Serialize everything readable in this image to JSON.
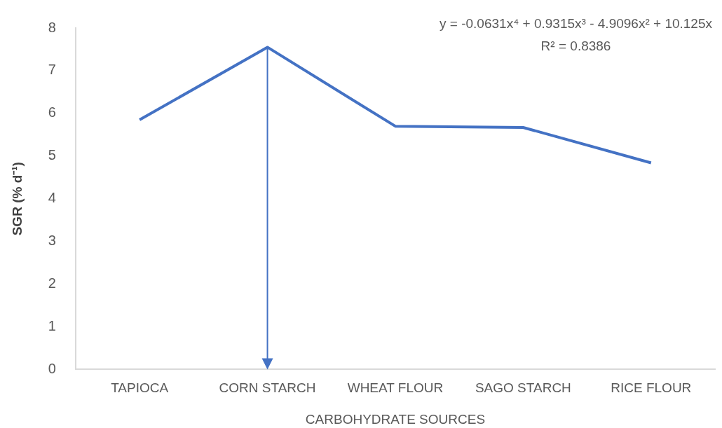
{
  "chart_data": {
    "type": "line",
    "categories": [
      "TAPIOCA",
      "CORN STARCH",
      "WHEAT FLOUR",
      "SAGO STARCH",
      "RICE FLOUR"
    ],
    "series": [
      {
        "color": "#4472c4",
        "values": [
          5.85,
          7.55,
          5.7,
          5.67,
          4.84
        ]
      }
    ],
    "xlabel": "CARBOHYDRATE SOURCES",
    "ylabel": "SGR (% d⁻¹)",
    "ylim": [
      0,
      8
    ],
    "yticks": [
      0,
      1,
      2,
      3,
      4,
      5,
      6,
      7,
      8
    ],
    "annotations": [
      "y = -0.0631x⁴ + 0.9315x³ - 4.9096x² + 10.125x",
      "R² = 0.8386"
    ],
    "grid": false,
    "legend": false,
    "marker": "none",
    "line_style": "solid"
  }
}
